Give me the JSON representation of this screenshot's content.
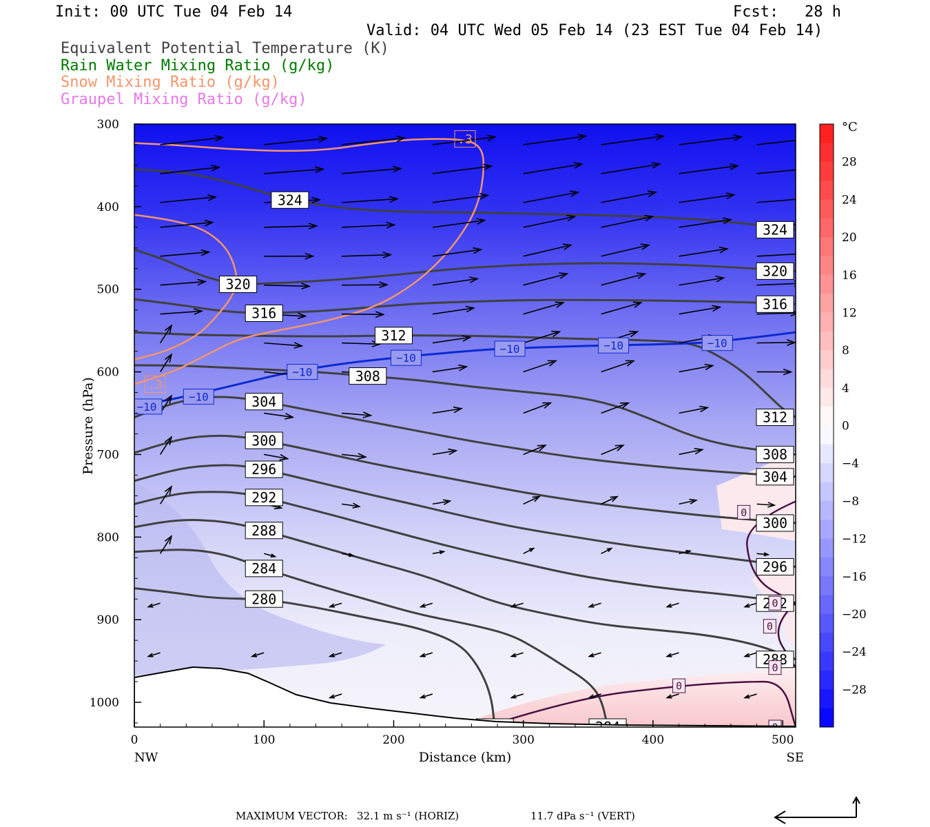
{
  "header": {
    "init": "Init: 00 UTC Tue 04 Feb 14",
    "fcst_label": "Fcst:",
    "fcst_value": "28 h",
    "valid": "Valid: 04 UTC Wed 05 Feb 14 (23 EST Tue 04 Feb 14)",
    "legend": [
      {
        "text": "Equivalent Potential Temperature (K)",
        "color": "#404040"
      },
      {
        "text": "Rain Water Mixing Ratio (g/kg)",
        "color": "#007a00"
      },
      {
        "text": "Snow Mixing Ratio (g/kg)",
        "color": "#f4956a"
      },
      {
        "text": "Graupel Mixing Ratio (g/kg)",
        "color": "#e878e8"
      }
    ]
  },
  "footer": {
    "max_vector_label": "MAXIMUM VECTOR:",
    "horiz": "32.1 m s⁻¹ (HORIZ)",
    "vert": "11.7 dPa s⁻¹ (VERT)"
  },
  "chart_data": {
    "type": "heatmap",
    "xlabel": "Distance (km)",
    "ylabel": "Pressure (hPa)",
    "xlim": [
      0,
      510
    ],
    "ylim": [
      1030,
      300
    ],
    "x_ticks": [
      0,
      100,
      200,
      300,
      400,
      500
    ],
    "y_ticks": [
      300,
      400,
      500,
      600,
      700,
      800,
      900,
      1000
    ],
    "x_end_labels": {
      "left": "NW",
      "right": "SE"
    },
    "colorbar": {
      "unit": "°C",
      "ticks": [
        28,
        24,
        20,
        16,
        12,
        8,
        4,
        0,
        -4,
        -8,
        -12,
        -16,
        -20,
        -24,
        -28
      ],
      "range": [
        -32,
        32
      ]
    },
    "theta_e_contours": [
      {
        "label": "324",
        "level": 324,
        "points": [
          [
            0,
            355
          ],
          [
            30,
            357
          ],
          [
            60,
            365
          ],
          [
            90,
            378
          ],
          [
            120,
            392
          ],
          [
            160,
            402
          ],
          [
            200,
            406
          ],
          [
            260,
            407
          ],
          [
            320,
            409
          ],
          [
            400,
            412
          ],
          [
            460,
            418
          ],
          [
            510,
            428
          ]
        ]
      },
      {
        "label": "320",
        "level": 320,
        "points": [
          [
            0,
            452
          ],
          [
            20,
            462
          ],
          [
            40,
            476
          ],
          [
            60,
            488
          ],
          [
            80,
            494
          ],
          [
            120,
            492
          ],
          [
            160,
            488
          ],
          [
            200,
            483
          ],
          [
            240,
            476
          ],
          [
            300,
            470
          ],
          [
            360,
            468
          ],
          [
            420,
            470
          ],
          [
            480,
            475
          ],
          [
            510,
            478
          ]
        ]
      },
      {
        "label": "316",
        "level": 316,
        "points": [
          [
            0,
            512
          ],
          [
            20,
            516
          ],
          [
            40,
            520
          ],
          [
            60,
            525
          ],
          [
            80,
            528
          ],
          [
            100,
            529
          ],
          [
            140,
            527
          ],
          [
            180,
            522
          ],
          [
            220,
            517
          ],
          [
            260,
            515
          ],
          [
            300,
            513
          ],
          [
            360,
            513
          ],
          [
            420,
            514
          ],
          [
            480,
            516
          ],
          [
            510,
            518
          ]
        ]
      },
      {
        "label": "312",
        "level": 312,
        "points": [
          [
            0,
            552
          ],
          [
            40,
            555
          ],
          [
            80,
            556
          ],
          [
            120,
            557
          ],
          [
            160,
            557
          ],
          [
            200,
            556
          ],
          [
            240,
            556
          ],
          [
            280,
            557
          ],
          [
            340,
            560
          ],
          [
            400,
            562
          ],
          [
            430,
            565
          ],
          [
            450,
            580
          ],
          [
            470,
            600
          ],
          [
            490,
            630
          ],
          [
            500,
            645
          ],
          [
            510,
            655
          ]
        ]
      },
      {
        "label": "308",
        "level": 308,
        "points": [
          [
            0,
            592
          ],
          [
            30,
            592
          ],
          [
            60,
            594
          ],
          [
            100,
            597
          ],
          [
            140,
            600
          ],
          [
            180,
            605
          ],
          [
            220,
            610
          ],
          [
            260,
            618
          ],
          [
            300,
            624
          ],
          [
            340,
            630
          ],
          [
            370,
            640
          ],
          [
            400,
            658
          ],
          [
            430,
            678
          ],
          [
            460,
            690
          ],
          [
            490,
            696
          ],
          [
            510,
            700
          ]
        ]
      },
      {
        "label": "304",
        "level": 304,
        "points": [
          [
            0,
            655
          ],
          [
            20,
            643
          ],
          [
            40,
            634
          ],
          [
            60,
            630
          ],
          [
            80,
            631
          ],
          [
            100,
            636
          ],
          [
            140,
            648
          ],
          [
            180,
            660
          ],
          [
            220,
            672
          ],
          [
            260,
            684
          ],
          [
            300,
            694
          ],
          [
            340,
            704
          ],
          [
            380,
            711
          ],
          [
            420,
            717
          ],
          [
            460,
            722
          ],
          [
            510,
            727
          ]
        ]
      },
      {
        "label": "300",
        "level": 300,
        "points": [
          [
            0,
            698
          ],
          [
            20,
            688
          ],
          [
            40,
            680
          ],
          [
            60,
            677
          ],
          [
            80,
            678
          ],
          [
            100,
            683
          ],
          [
            140,
            696
          ],
          [
            180,
            710
          ],
          [
            220,
            722
          ],
          [
            260,
            734
          ],
          [
            300,
            746
          ],
          [
            340,
            756
          ],
          [
            380,
            764
          ],
          [
            420,
            771
          ],
          [
            460,
            777
          ],
          [
            510,
            783
          ]
        ]
      },
      {
        "label": "296",
        "level": 296,
        "points": [
          [
            0,
            732
          ],
          [
            20,
            723
          ],
          [
            40,
            716
          ],
          [
            60,
            713
          ],
          [
            80,
            713
          ],
          [
            100,
            718
          ],
          [
            140,
            733
          ],
          [
            180,
            748
          ],
          [
            220,
            762
          ],
          [
            260,
            777
          ],
          [
            300,
            790
          ],
          [
            340,
            800
          ],
          [
            380,
            810
          ],
          [
            420,
            818
          ],
          [
            460,
            826
          ],
          [
            510,
            836
          ]
        ]
      },
      {
        "label": "292",
        "level": 292,
        "points": [
          [
            0,
            760
          ],
          [
            20,
            752
          ],
          [
            40,
            746
          ],
          [
            60,
            745
          ],
          [
            80,
            746
          ],
          [
            100,
            752
          ],
          [
            140,
            768
          ],
          [
            180,
            785
          ],
          [
            220,
            802
          ],
          [
            260,
            818
          ],
          [
            300,
            832
          ],
          [
            340,
            846
          ],
          [
            380,
            856
          ],
          [
            420,
            864
          ],
          [
            460,
            870
          ],
          [
            510,
            880
          ]
        ]
      },
      {
        "label": "288",
        "level": 288,
        "points": [
          [
            0,
            788
          ],
          [
            20,
            782
          ],
          [
            40,
            779
          ],
          [
            60,
            780
          ],
          [
            80,
            784
          ],
          [
            100,
            792
          ],
          [
            140,
            810
          ],
          [
            180,
            828
          ],
          [
            220,
            845
          ],
          [
            250,
            862
          ],
          [
            280,
            880
          ],
          [
            320,
            894
          ],
          [
            360,
            906
          ],
          [
            400,
            912
          ],
          [
            440,
            918
          ],
          [
            480,
            930
          ],
          [
            510,
            948
          ]
        ]
      },
      {
        "label": "284",
        "level": 284,
        "points": [
          [
            0,
            818
          ],
          [
            20,
            816
          ],
          [
            40,
            815
          ],
          [
            60,
            818
          ],
          [
            80,
            826
          ],
          [
            100,
            838
          ],
          [
            140,
            858
          ],
          [
            180,
            876
          ],
          [
            220,
            894
          ],
          [
            260,
            906
          ],
          [
            290,
            918
          ],
          [
            310,
            935
          ],
          [
            330,
            955
          ],
          [
            350,
            975
          ],
          [
            360,
            995
          ],
          [
            365,
            1030
          ]
        ]
      },
      {
        "label": "280",
        "level": 280,
        "points": [
          [
            0,
            862
          ],
          [
            30,
            867
          ],
          [
            60,
            874
          ],
          [
            100,
            875
          ],
          [
            140,
            885
          ],
          [
            180,
            898
          ],
          [
            220,
            910
          ],
          [
            250,
            928
          ],
          [
            265,
            955
          ],
          [
            275,
            990
          ],
          [
            278,
            1030
          ]
        ]
      }
    ],
    "temperature_contours": [
      {
        "label": "-10",
        "level": -10,
        "points": [
          [
            0,
            642
          ],
          [
            40,
            630
          ],
          [
            80,
            615
          ],
          [
            120,
            600
          ],
          [
            160,
            590
          ],
          [
            200,
            583
          ],
          [
            240,
            577
          ],
          [
            280,
            572
          ],
          [
            320,
            570
          ],
          [
            360,
            568
          ],
          [
            400,
            567
          ],
          [
            440,
            565
          ],
          [
            480,
            558
          ],
          [
            510,
            552
          ]
        ]
      }
    ],
    "snow_contours": [
      {
        "label": ".3",
        "level": 0.3,
        "points": [
          [
            0,
            323
          ],
          [
            30,
            325
          ],
          [
            70,
            330
          ],
          [
            115,
            333
          ],
          [
            150,
            331
          ],
          [
            180,
            324
          ],
          [
            215,
            318
          ],
          [
            255,
            318
          ],
          [
            268,
            328
          ],
          [
            270,
            355
          ],
          [
            265,
            400
          ],
          [
            250,
            440
          ],
          [
            230,
            475
          ],
          [
            210,
            500
          ],
          [
            185,
            522
          ],
          [
            150,
            538
          ],
          [
            110,
            550
          ],
          [
            80,
            560
          ],
          [
            55,
            580
          ],
          [
            30,
            600
          ],
          [
            0,
            615
          ]
        ]
      },
      {
        "label": "",
        "level": 0.1,
        "points": [
          [
            0,
            410
          ],
          [
            25,
            415
          ],
          [
            50,
            425
          ],
          [
            65,
            440
          ],
          [
            75,
            460
          ],
          [
            80,
            490
          ],
          [
            75,
            510
          ],
          [
            65,
            530
          ],
          [
            50,
            555
          ],
          [
            25,
            575
          ],
          [
            0,
            585
          ]
        ]
      }
    ],
    "graupel_contours": [
      {
        "label": "0",
        "level": 0.0,
        "points": [
          [
            560,
            730
          ],
          [
            470,
            770
          ],
          [
            475,
            850
          ],
          [
            510,
            880
          ]
        ]
      },
      {
        "label": "0",
        "level": 0.0,
        "points": [
          [
            510,
            880
          ],
          [
            490,
            908
          ],
          [
            510,
            958
          ]
        ]
      },
      {
        "label": "0",
        "level": 0.0,
        "points": [
          [
            270,
            1030
          ],
          [
            340,
            995
          ],
          [
            420,
            980
          ],
          [
            470,
            975
          ],
          [
            500,
            975
          ],
          [
            510,
            1030
          ]
        ]
      }
    ]
  }
}
